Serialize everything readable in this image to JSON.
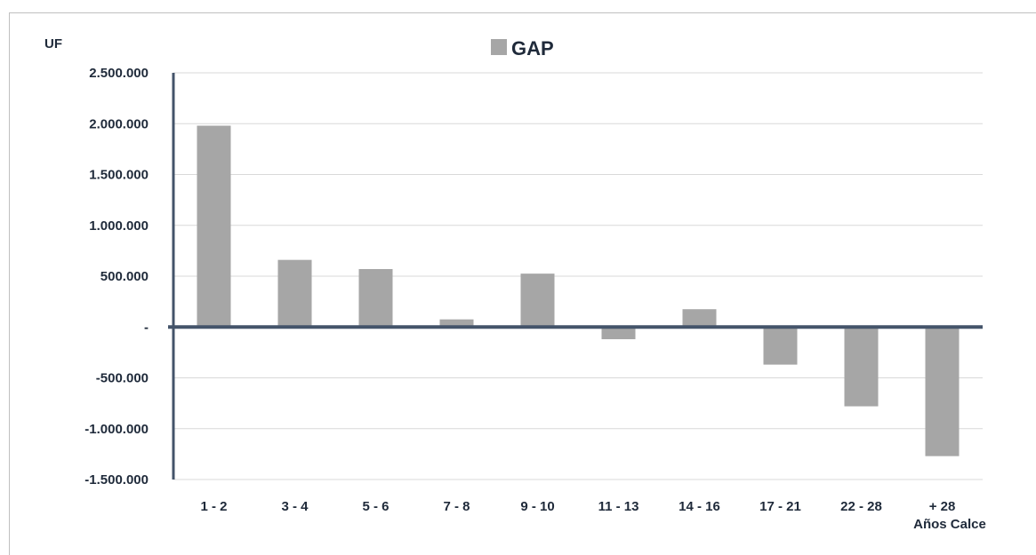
{
  "chart_data": {
    "type": "bar",
    "ylabel": "UF",
    "xlabel": "Años Calce",
    "categories": [
      "1 - 2",
      "3 - 4",
      "5 - 6",
      "7 - 8",
      "9 - 10",
      "11 - 13",
      "14 - 16",
      "17 - 21",
      "22 - 28",
      "+ 28"
    ],
    "series": [
      {
        "name": "GAP",
        "values": [
          1980000,
          660000,
          570000,
          75000,
          525000,
          -120000,
          175000,
          -370000,
          -780000,
          -1270000
        ]
      }
    ],
    "ylim": [
      -1500000,
      2500000
    ],
    "yticks": [
      2500000,
      2000000,
      1500000,
      1000000,
      500000,
      0,
      -500000,
      -1000000,
      -1500000
    ],
    "ytick_labels": [
      "2.500.000",
      "2.000.000",
      "1.500.000",
      "1.000.000",
      "500.000",
      "-",
      "-500.000",
      "-1.000.000",
      "-1.500.000"
    ],
    "grid": true,
    "legend": "top-center",
    "colors": {
      "bar": "#a6a6a6",
      "axis": "#44546a",
      "grid": "#d9d9d9"
    }
  }
}
